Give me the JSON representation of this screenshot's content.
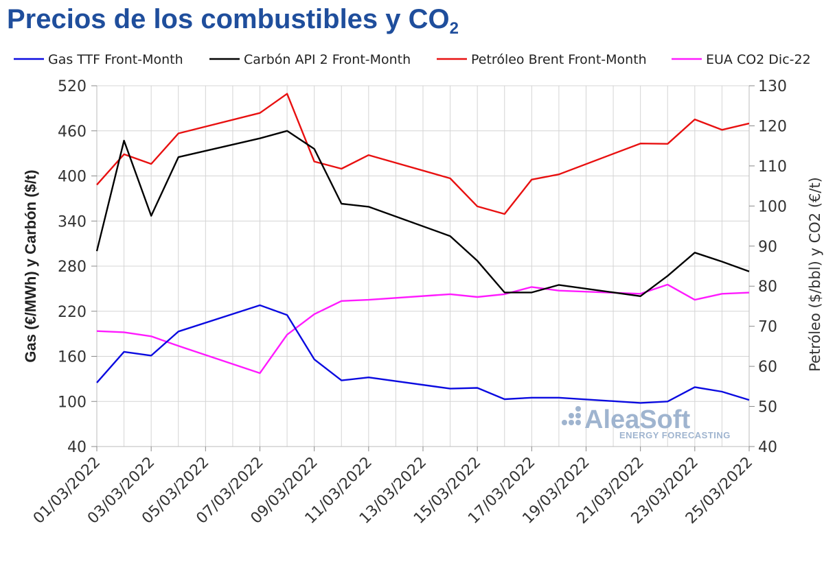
{
  "title": {
    "main": "Precios de los combustibles y CO",
    "sub": "2"
  },
  "watermark": {
    "brand": "AleaSoft",
    "tagline": "ENERGY FORECASTING"
  },
  "chart_data": {
    "type": "line",
    "title": "Precios de los combustibles y CO2",
    "ylabel": "Gas (€/MWh) y Carbón ($/t)",
    "y2label": "Petróleo ($/bbl) y CO2 (€/t)",
    "ylim": [
      40,
      520
    ],
    "y2lim": [
      40,
      130
    ],
    "yticks": [
      40,
      100,
      160,
      220,
      280,
      340,
      400,
      460,
      520
    ],
    "y2ticks": [
      40,
      50,
      60,
      70,
      80,
      90,
      100,
      110,
      120,
      130
    ],
    "x": [
      "01/03/2022",
      "02/03/2022",
      "03/03/2022",
      "04/03/2022",
      "05/03/2022",
      "06/03/2022",
      "07/03/2022",
      "08/03/2022",
      "09/03/2022",
      "10/03/2022",
      "11/03/2022",
      "12/03/2022",
      "13/03/2022",
      "14/03/2022",
      "15/03/2022",
      "16/03/2022",
      "17/03/2022",
      "18/03/2022",
      "19/03/2022",
      "20/03/2022",
      "21/03/2022",
      "22/03/2022",
      "23/03/2022",
      "24/03/2022",
      "25/03/2022"
    ],
    "xtick_labels": [
      "01/03/2022",
      "03/03/2022",
      "05/03/2022",
      "07/03/2022",
      "09/03/2022",
      "11/03/2022",
      "13/03/2022",
      "15/03/2022",
      "17/03/2022",
      "19/03/2022",
      "21/03/2022",
      "23/03/2022",
      "25/03/2022"
    ],
    "grid": true,
    "legend_position": "top",
    "series": [
      {
        "name": "Gas TTF Front-Month",
        "axis": "left",
        "color": "#0a0ae0",
        "x": [
          "01/03/2022",
          "02/03/2022",
          "03/03/2022",
          "04/03/2022",
          "07/03/2022",
          "08/03/2022",
          "09/03/2022",
          "10/03/2022",
          "11/03/2022",
          "14/03/2022",
          "15/03/2022",
          "16/03/2022",
          "17/03/2022",
          "18/03/2022",
          "21/03/2022",
          "22/03/2022",
          "23/03/2022",
          "24/03/2022",
          "25/03/2022"
        ],
        "values": [
          125,
          166,
          161,
          193,
          228,
          215,
          156,
          128,
          132,
          117,
          118,
          103,
          105,
          105,
          98,
          100,
          119,
          113,
          102
        ]
      },
      {
        "name": "Carbón API 2 Front-Month",
        "axis": "left",
        "color": "#000000",
        "x": [
          "01/03/2022",
          "02/03/2022",
          "03/03/2022",
          "04/03/2022",
          "07/03/2022",
          "08/03/2022",
          "09/03/2022",
          "10/03/2022",
          "11/03/2022",
          "14/03/2022",
          "15/03/2022",
          "16/03/2022",
          "17/03/2022",
          "18/03/2022",
          "21/03/2022",
          "22/03/2022",
          "23/03/2022",
          "24/03/2022",
          "25/03/2022"
        ],
        "values": [
          300,
          447,
          347,
          425,
          450,
          460,
          436,
          363,
          359,
          320,
          287,
          245,
          245,
          255,
          240,
          267,
          298,
          286,
          273
        ]
      },
      {
        "name": "Petróleo Brent Front-Month",
        "axis": "right",
        "color": "#e81010",
        "x": [
          "01/03/2022",
          "02/03/2022",
          "03/03/2022",
          "04/03/2022",
          "07/03/2022",
          "08/03/2022",
          "09/03/2022",
          "10/03/2022",
          "11/03/2022",
          "14/03/2022",
          "15/03/2022",
          "16/03/2022",
          "17/03/2022",
          "18/03/2022",
          "21/03/2022",
          "22/03/2022",
          "23/03/2022",
          "24/03/2022",
          "25/03/2022"
        ],
        "values": [
          105.3,
          112.9,
          110.5,
          118.1,
          123.2,
          128.0,
          111.1,
          109.3,
          112.7,
          106.9,
          99.9,
          98.0,
          106.6,
          107.9,
          115.6,
          115.5,
          121.6,
          119.0,
          120.6
        ]
      },
      {
        "name": "EUA CO2 Dic-22",
        "axis": "right",
        "color": "#ff1aff",
        "x": [
          "01/03/2022",
          "02/03/2022",
          "03/03/2022",
          "04/03/2022",
          "07/03/2022",
          "08/03/2022",
          "09/03/2022",
          "10/03/2022",
          "11/03/2022",
          "14/03/2022",
          "15/03/2022",
          "16/03/2022",
          "17/03/2022",
          "18/03/2022",
          "21/03/2022",
          "22/03/2022",
          "23/03/2022",
          "24/03/2022",
          "25/03/2022"
        ],
        "values": [
          68.8,
          68.5,
          67.5,
          65.1,
          58.3,
          67.9,
          73.0,
          76.3,
          76.6,
          78.0,
          77.3,
          78.0,
          79.8,
          78.9,
          78.1,
          80.4,
          76.6,
          78.1,
          78.4
        ]
      }
    ]
  }
}
